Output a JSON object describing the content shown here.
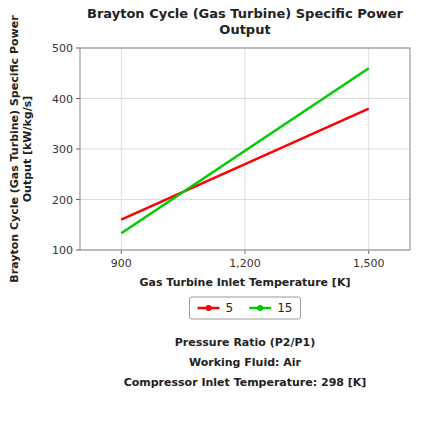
{
  "chart_data": {
    "type": "line",
    "title": "Brayton Cycle (Gas Turbine) Specific Power\nOutput",
    "x_label": "Gas Turbine Inlet Temperature [K]",
    "y_label": "Brayton Cycle (Gas Turbine) Specific Power\nOutput [kW/kg/s]",
    "x": [
      900,
      1500
    ],
    "series": [
      {
        "name": "5",
        "color": "#FF0000",
        "values": [
          160,
          380
        ]
      },
      {
        "name": "15",
        "color": "#00CC00",
        "values": [
          133,
          460
        ]
      }
    ],
    "xlim": [
      800,
      1600
    ],
    "ylim": [
      100,
      500
    ],
    "xticks": [
      900,
      {
        "value": 1200,
        "label": "1,200"
      },
      {
        "value": 1500,
        "label": "1,500"
      }
    ],
    "yticks": [
      100,
      200,
      300,
      400,
      500
    ],
    "grid": true,
    "legend": "bottom",
    "annotations": [
      "Pressure Ratio (P2/P1)",
      "Working Fluid:  Air",
      "Compressor Inlet Temperature:  298 [K]"
    ]
  }
}
